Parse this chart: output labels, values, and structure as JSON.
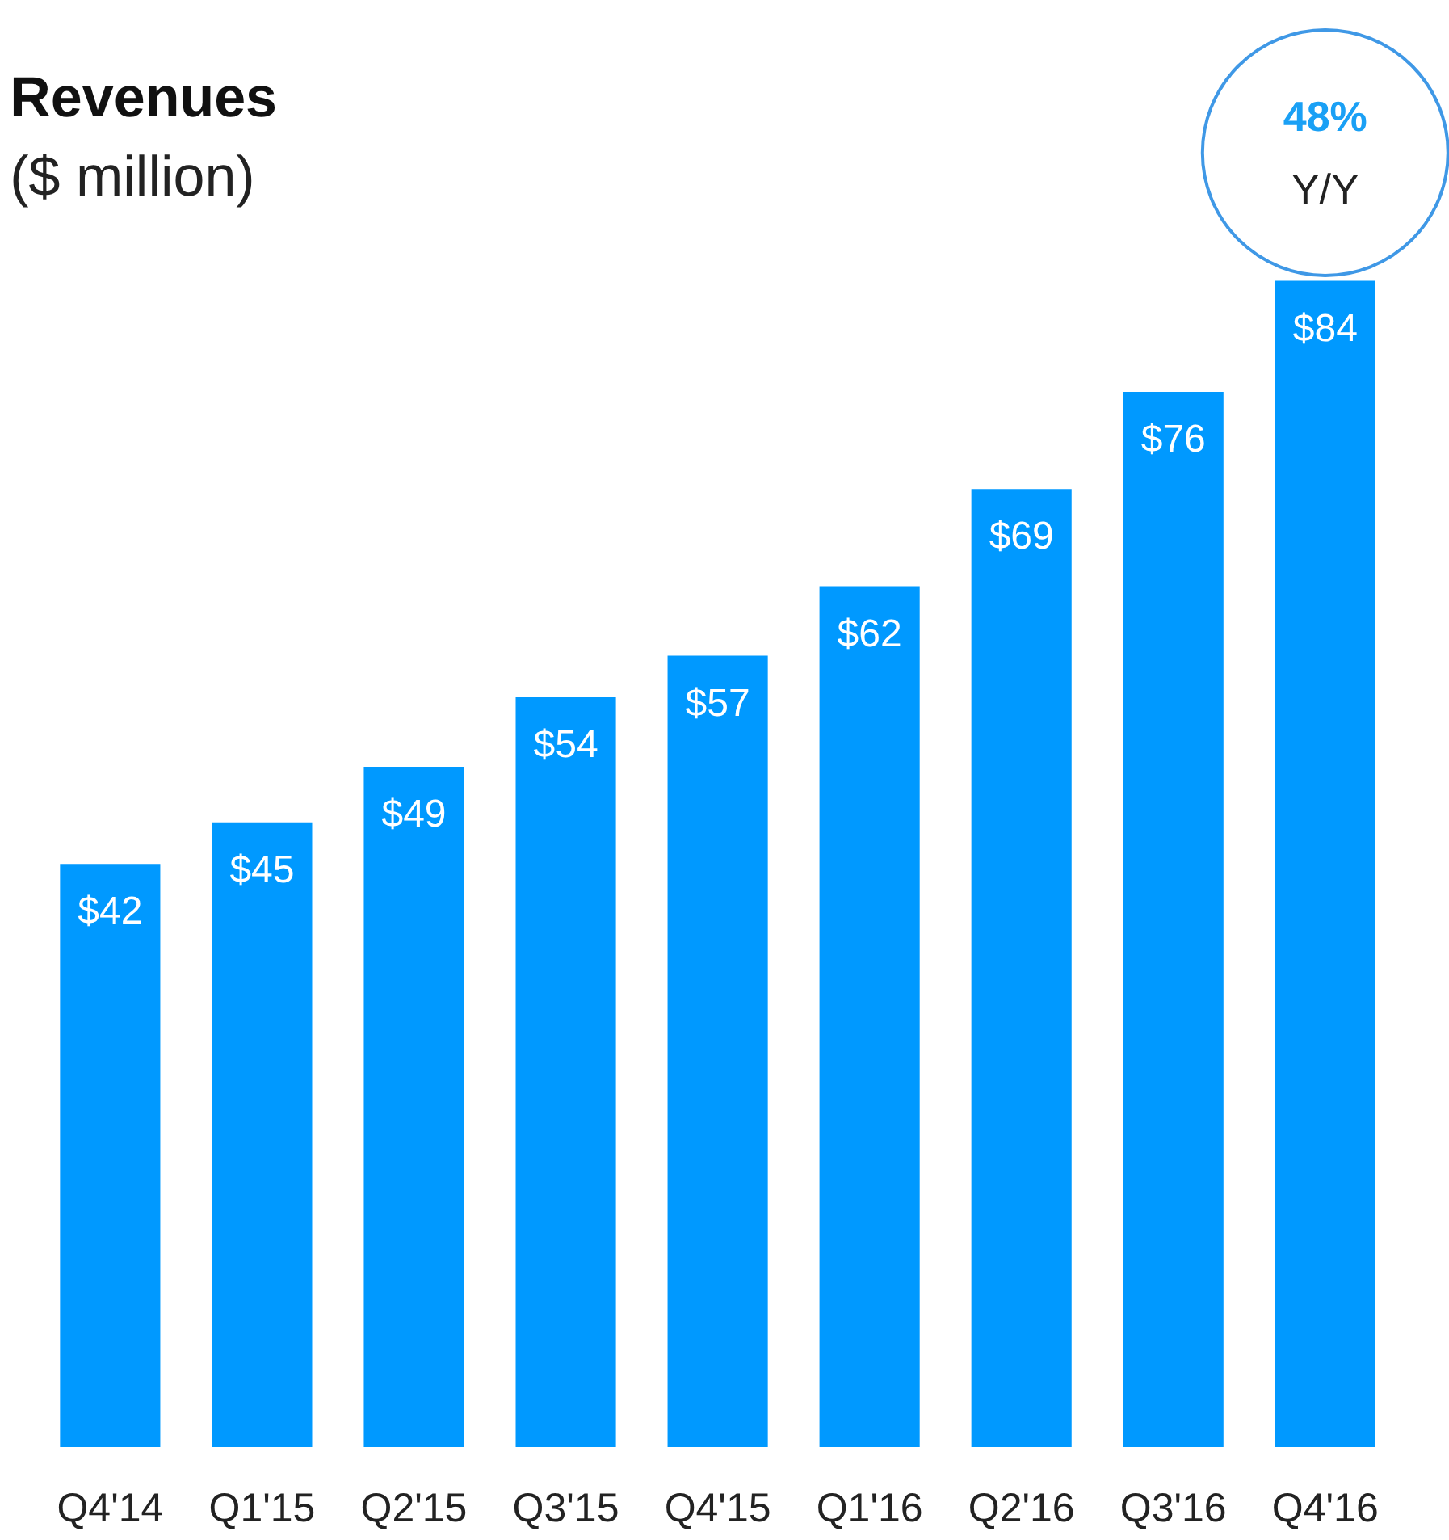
{
  "chart_data": {
    "type": "bar",
    "title": "Revenues",
    "subtitle": "($ million)",
    "categories": [
      "Q4'14",
      "Q1'15",
      "Q2'15",
      "Q3'15",
      "Q4'15",
      "Q1'16",
      "Q2'16",
      "Q3'16",
      "Q4'16"
    ],
    "values": [
      42,
      45,
      49,
      54,
      57,
      62,
      69,
      76,
      84
    ],
    "value_labels": [
      "$42",
      "$45",
      "$49",
      "$54",
      "$57",
      "$62",
      "$69",
      "$76",
      "$84"
    ],
    "color": "#0099ff",
    "annotations": [
      "48%",
      "Y/Y"
    ],
    "grid": false
  }
}
